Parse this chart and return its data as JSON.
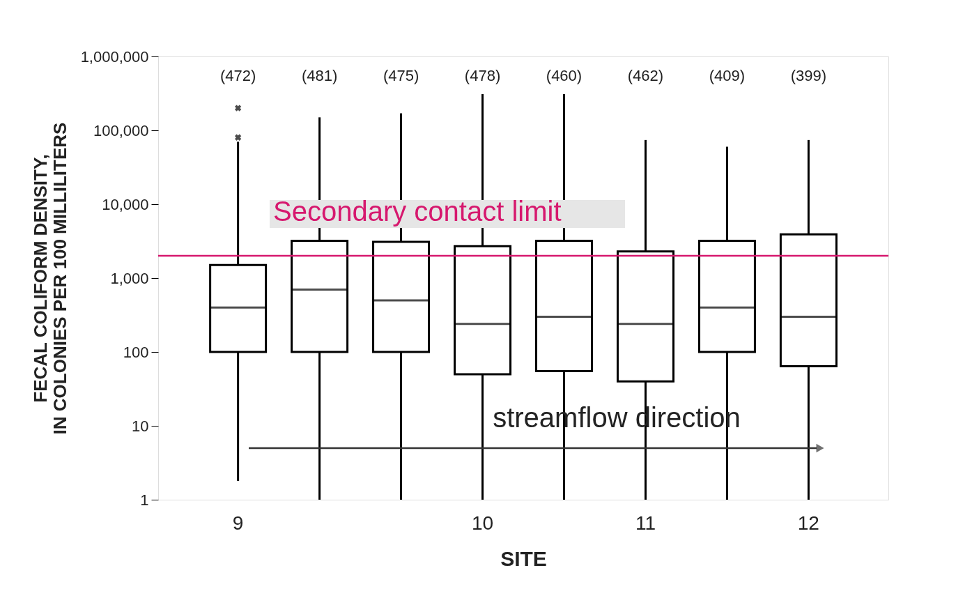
{
  "chart_data": {
    "type": "box",
    "xlabel": "SITE",
    "ylabel": "FECAL COLIFORM DENSITY,\nIN COLONIES PER 100 MILLILITERS",
    "categories": [
      "9",
      null,
      null,
      "10",
      null,
      "11",
      null,
      "12"
    ],
    "boxes": [
      {
        "low": 1.8,
        "q1": 100,
        "median": 400,
        "q3": 1500,
        "high": 70000,
        "outliers": [
          80000,
          200000
        ]
      },
      {
        "low": 1,
        "q1": 100,
        "median": 700,
        "q3": 3200,
        "high": 150000
      },
      {
        "low": 1,
        "q1": 100,
        "median": 500,
        "q3": 3100,
        "high": 170000
      },
      {
        "low": 1,
        "q1": 50,
        "median": 240,
        "q3": 2700,
        "high": 310000
      },
      {
        "low": 1,
        "q1": 55,
        "median": 300,
        "q3": 3200,
        "high": 310000
      },
      {
        "low": 1,
        "q1": 40,
        "median": 240,
        "q3": 2300,
        "high": 74000
      },
      {
        "low": 1,
        "q1": 100,
        "median": 400,
        "q3": 3200,
        "high": 60000
      },
      {
        "low": 1,
        "q1": 64,
        "median": 300,
        "q3": 3900,
        "high": 74000
      }
    ],
    "log": true,
    "ylim": [
      1,
      1000000
    ],
    "yticks": [
      1,
      10,
      100,
      {
        "value": 1000,
        "label": "1,000"
      },
      {
        "value": 10000,
        "label": "10,000"
      },
      {
        "value": 100000,
        "label": "100,000"
      },
      {
        "value": 1000000,
        "label": "1,000,000"
      }
    ],
    "ref_lines": [
      {
        "axis": "y",
        "value": 2000,
        "label": "Secondary contact limit",
        "color": "#d6186e"
      }
    ],
    "annotations": [
      "(472)",
      "(481)",
      "(475)",
      "(478)",
      "(460)",
      "(462)",
      "(409)",
      "(399)",
      "streamflow direction"
    ],
    "grid": false
  }
}
